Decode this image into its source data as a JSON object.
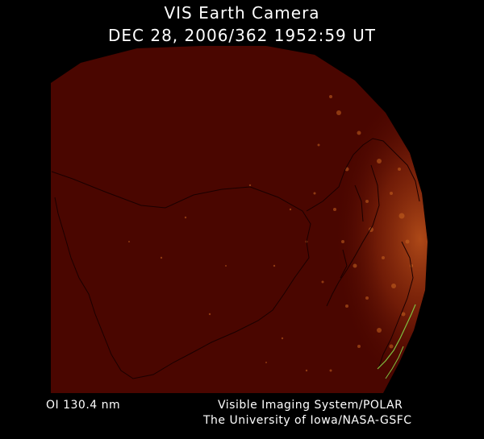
{
  "header": {
    "instrument": "VIS Earth Camera",
    "timestamp": "DEC 28, 2006/362 1952:59 UT"
  },
  "footer": {
    "filter": "OI  130.4 nm",
    "system": "Visible Imaging System/POLAR",
    "credit": "The University of Iowa/NASA-GSFC"
  },
  "colors": {
    "background": "#000000",
    "earth_disk": "#4a0600",
    "aurora": "#c85a1a",
    "coastline": "#1a0000",
    "terminator_line": "#7fc040"
  }
}
